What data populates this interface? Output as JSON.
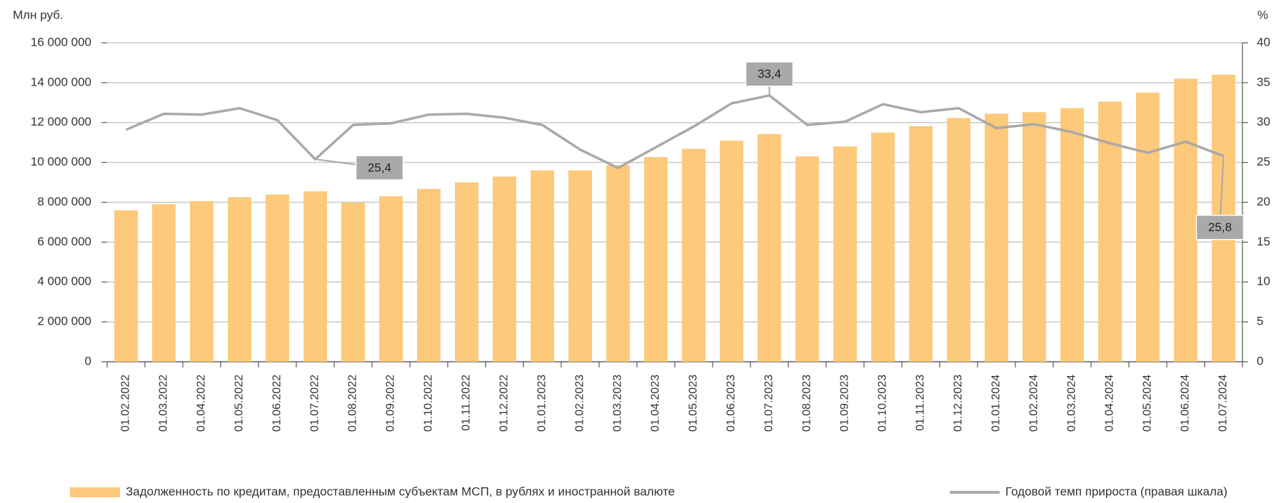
{
  "chart_data": {
    "type": "bar_line",
    "y_label": "Млн руб.",
    "y2_label": "%",
    "categories": [
      "01.02.2022",
      "01.03.2022",
      "01.04.2022",
      "01.05.2022",
      "01.06.2022",
      "01.07.2022",
      "01.08.2022",
      "01.09.2022",
      "01.10.2022",
      "01.11.2022",
      "01.12.2022",
      "01.01.2023",
      "01.02.2023",
      "01.03.2023",
      "01.04.2023",
      "01.05.2023",
      "01.06.2023",
      "01.07.2023",
      "01.08.2023",
      "01.09.2023",
      "01.10.2023",
      "01.11.2023",
      "01.12.2023",
      "01.01.2024",
      "01.02.2024",
      "01.03.2024",
      "01.04.2024",
      "01.05.2024",
      "01.06.2024",
      "01.07.2024"
    ],
    "series": [
      {
        "name": "Задолженность по кредитам, предоставленным субъектам МСП, в рублях и иностранной валюте",
        "type": "bar",
        "color": "#fdc97a",
        "values": [
          7600000,
          7900000,
          8060000,
          8260000,
          8390000,
          8550000,
          7980000,
          8300000,
          8670000,
          9000000,
          9290000,
          9600000,
          9600000,
          9860000,
          10270000,
          10680000,
          11090000,
          11420000,
          10300000,
          10800000,
          11500000,
          11820000,
          12230000,
          12440000,
          12520000,
          12720000,
          13050000,
          13500000,
          14200000,
          14400000
        ]
      },
      {
        "name": "Годовой темп прироста (правая шкала)",
        "type": "line",
        "axis": "y2",
        "color": "#a9a9a9",
        "values": [
          29.1,
          31.1,
          31.0,
          31.8,
          30.3,
          25.4,
          29.7,
          29.9,
          31.0,
          31.1,
          30.6,
          29.7,
          26.6,
          24.3,
          26.9,
          29.5,
          32.4,
          33.4,
          29.7,
          30.1,
          32.3,
          31.3,
          31.8,
          29.3,
          29.8,
          28.8,
          27.4,
          26.2,
          27.6,
          25.8
        ],
        "value_labels": [
          null,
          null,
          null,
          null,
          null,
          "25,4",
          null,
          null,
          null,
          null,
          null,
          null,
          null,
          null,
          null,
          null,
          null,
          "33,4",
          null,
          null,
          null,
          null,
          null,
          null,
          null,
          null,
          null,
          null,
          null,
          "25,8"
        ]
      }
    ],
    "ylim": [
      0,
      16000000
    ],
    "yticks": [
      0,
      {
        "value": 2000000,
        "label": "2 000 000"
      },
      {
        "value": 4000000,
        "label": "4 000 000"
      },
      {
        "value": 6000000,
        "label": "6 000 000"
      },
      {
        "value": 8000000,
        "label": "8 000 000"
      },
      {
        "value": 10000000,
        "label": "10 000 000"
      },
      {
        "value": 12000000,
        "label": "12 000 000"
      },
      {
        "value": 14000000,
        "label": "14 000 000"
      },
      {
        "value": 16000000,
        "label": "16 000 000"
      }
    ],
    "y2lim": [
      0,
      40
    ],
    "y2ticks": [
      0,
      5,
      10,
      15,
      20,
      25,
      30,
      35,
      40
    ],
    "grid": true
  }
}
